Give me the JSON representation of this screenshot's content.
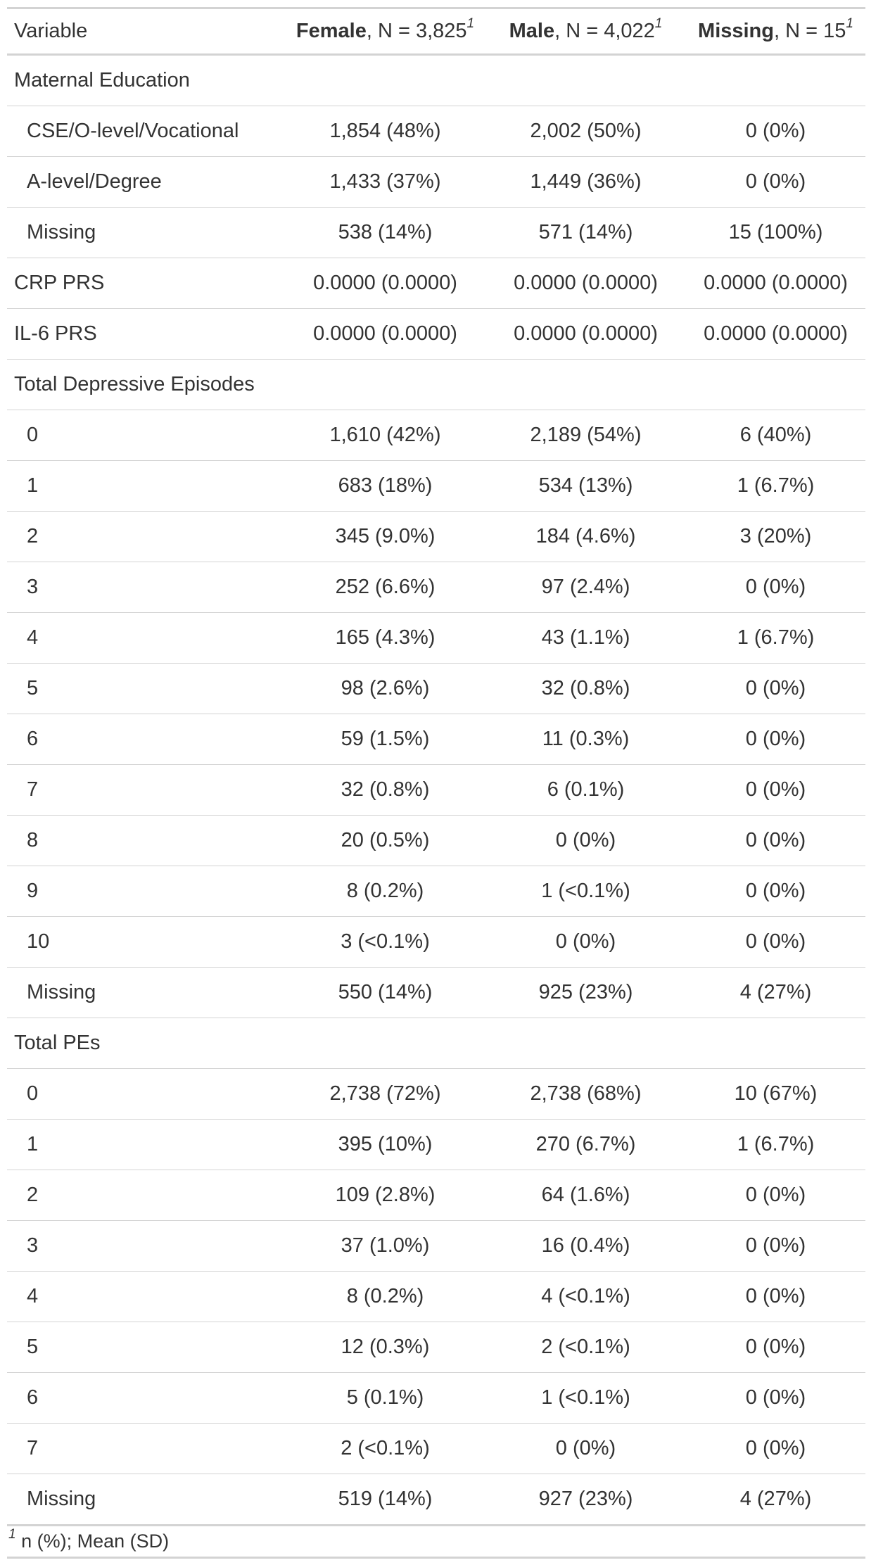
{
  "header": {
    "variable": "Variable",
    "groups": [
      {
        "name": "Female",
        "n_text": ", N = 3,825",
        "mark": "1"
      },
      {
        "name": "Male",
        "n_text": ", N = 4,022",
        "mark": "1"
      },
      {
        "name": "Missing",
        "n_text": ", N = 15",
        "mark": "1"
      }
    ]
  },
  "rows": [
    {
      "label": "Maternal Education",
      "indent": false,
      "values": []
    },
    {
      "label": "CSE/O-level/Vocational",
      "indent": true,
      "values": [
        "1,854 (48%)",
        "2,002 (50%)",
        "0 (0%)"
      ]
    },
    {
      "label": "A-level/Degree",
      "indent": true,
      "values": [
        "1,433 (37%)",
        "1,449 (36%)",
        "0 (0%)"
      ]
    },
    {
      "label": "Missing",
      "indent": true,
      "values": [
        "538 (14%)",
        "571 (14%)",
        "15 (100%)"
      ]
    },
    {
      "label": "CRP PRS",
      "indent": false,
      "values": [
        "0.0000 (0.0000)",
        "0.0000 (0.0000)",
        "0.0000 (0.0000)"
      ]
    },
    {
      "label": "IL-6 PRS",
      "indent": false,
      "values": [
        "0.0000 (0.0000)",
        "0.0000 (0.0000)",
        "0.0000 (0.0000)"
      ]
    },
    {
      "label": "Total Depressive Episodes",
      "indent": false,
      "values": []
    },
    {
      "label": "0",
      "indent": true,
      "values": [
        "1,610 (42%)",
        "2,189 (54%)",
        "6 (40%)"
      ]
    },
    {
      "label": "1",
      "indent": true,
      "values": [
        "683 (18%)",
        "534 (13%)",
        "1 (6.7%)"
      ]
    },
    {
      "label": "2",
      "indent": true,
      "values": [
        "345 (9.0%)",
        "184 (4.6%)",
        "3 (20%)"
      ]
    },
    {
      "label": "3",
      "indent": true,
      "values": [
        "252 (6.6%)",
        "97 (2.4%)",
        "0 (0%)"
      ]
    },
    {
      "label": "4",
      "indent": true,
      "values": [
        "165 (4.3%)",
        "43 (1.1%)",
        "1 (6.7%)"
      ]
    },
    {
      "label": "5",
      "indent": true,
      "values": [
        "98 (2.6%)",
        "32 (0.8%)",
        "0 (0%)"
      ]
    },
    {
      "label": "6",
      "indent": true,
      "values": [
        "59 (1.5%)",
        "11 (0.3%)",
        "0 (0%)"
      ]
    },
    {
      "label": "7",
      "indent": true,
      "values": [
        "32 (0.8%)",
        "6 (0.1%)",
        "0 (0%)"
      ]
    },
    {
      "label": "8",
      "indent": true,
      "values": [
        "20 (0.5%)",
        "0 (0%)",
        "0 (0%)"
      ]
    },
    {
      "label": "9",
      "indent": true,
      "values": [
        "8 (0.2%)",
        "1 (<0.1%)",
        "0 (0%)"
      ]
    },
    {
      "label": "10",
      "indent": true,
      "values": [
        "3 (<0.1%)",
        "0 (0%)",
        "0 (0%)"
      ]
    },
    {
      "label": "Missing",
      "indent": true,
      "values": [
        "550 (14%)",
        "925 (23%)",
        "4 (27%)"
      ]
    },
    {
      "label": "Total PEs",
      "indent": false,
      "values": []
    },
    {
      "label": "0",
      "indent": true,
      "values": [
        "2,738 (72%)",
        "2,738 (68%)",
        "10 (67%)"
      ]
    },
    {
      "label": "1",
      "indent": true,
      "values": [
        "395 (10%)",
        "270 (6.7%)",
        "1 (6.7%)"
      ]
    },
    {
      "label": "2",
      "indent": true,
      "values": [
        "109 (2.8%)",
        "64 (1.6%)",
        "0 (0%)"
      ]
    },
    {
      "label": "3",
      "indent": true,
      "values": [
        "37 (1.0%)",
        "16 (0.4%)",
        "0 (0%)"
      ]
    },
    {
      "label": "4",
      "indent": true,
      "values": [
        "8 (0.2%)",
        "4 (<0.1%)",
        "0 (0%)"
      ]
    },
    {
      "label": "5",
      "indent": true,
      "values": [
        "12 (0.3%)",
        "2 (<0.1%)",
        "0 (0%)"
      ]
    },
    {
      "label": "6",
      "indent": true,
      "values": [
        "5 (0.1%)",
        "1 (<0.1%)",
        "0 (0%)"
      ]
    },
    {
      "label": "7",
      "indent": true,
      "values": [
        "2 (<0.1%)",
        "0 (0%)",
        "0 (0%)"
      ]
    },
    {
      "label": "Missing",
      "indent": true,
      "values": [
        "519 (14%)",
        "927 (23%)",
        "4 (27%)"
      ]
    }
  ],
  "footnote": {
    "mark": "1",
    "text": " n (%); Mean (SD)"
  }
}
